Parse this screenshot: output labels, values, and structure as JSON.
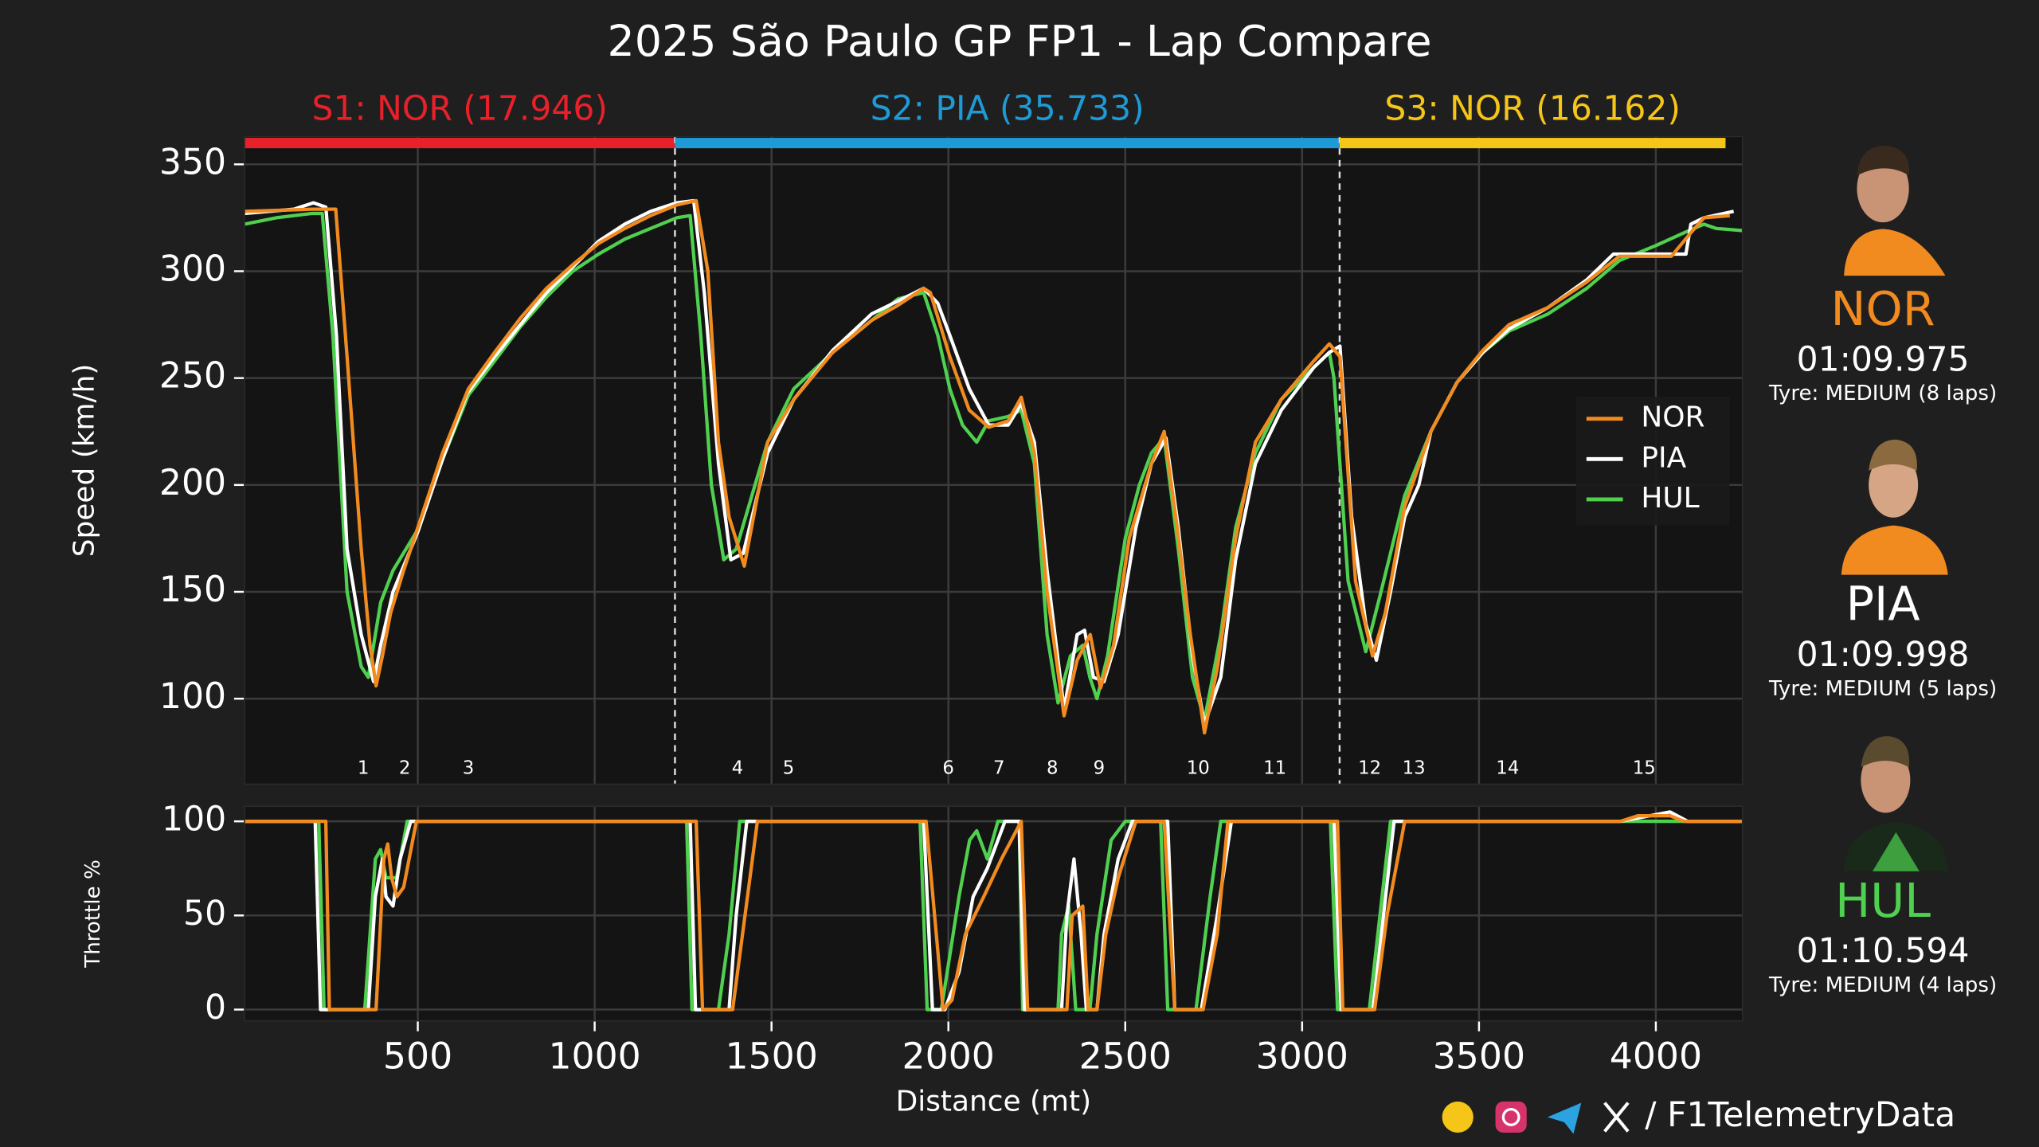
{
  "title": "2025 São Paulo GP FP1 - Lap Compare",
  "watermark": "@F1TelemetryData",
  "footer": "/ F1TelemetryData",
  "drivers": [
    {
      "code": "NOR",
      "color": "#f28b1f",
      "lap_time": "01:09.975",
      "tyre": "Tyre: MEDIUM (8 laps)"
    },
    {
      "code": "PIA",
      "color": "#ffffff",
      "lap_time": "01:09.998",
      "tyre": "Tyre: MEDIUM (5 laps)"
    },
    {
      "code": "HUL",
      "color": "#4fd14f",
      "lap_time": "01:10.594",
      "tyre": "Tyre: MEDIUM (4 laps)"
    }
  ],
  "chart_data": [
    {
      "type": "line",
      "ylabel": "Speed (km/h)",
      "xlim": [
        10,
        4245
      ],
      "ylim": [
        60,
        363
      ],
      "yticks": [
        100,
        150,
        200,
        250,
        300,
        350
      ],
      "grid": true,
      "legend": "center right",
      "sectors": [
        {
          "label": "S1: NOR (17.946)",
          "color": "#e8202a",
          "end": 1227
        },
        {
          "label": "S2: PIA (35.733)",
          "color": "#1e9ad6",
          "end": 3106
        },
        {
          "label": "S3: NOR (16.162)",
          "color": "#f5c518",
          "end": 4197
        }
      ],
      "annotations": [
        {
          "label": "1",
          "x": 346
        },
        {
          "label": "2",
          "x": 463
        },
        {
          "label": "3",
          "x": 643
        },
        {
          "label": "4",
          "x": 1404
        },
        {
          "label": "5",
          "x": 1548
        },
        {
          "label": "6",
          "x": 2000
        },
        {
          "label": "7",
          "x": 2143
        },
        {
          "label": "8",
          "x": 2294
        },
        {
          "label": "9",
          "x": 2426
        },
        {
          "label": "10",
          "x": 2706
        },
        {
          "label": "11",
          "x": 2923
        },
        {
          "label": "12",
          "x": 3191
        },
        {
          "label": "13",
          "x": 3316
        },
        {
          "label": "14",
          "x": 3581
        },
        {
          "label": "15",
          "x": 3967
        }
      ],
      "series": [
        {
          "name": "NOR",
          "color": "#f28b1f",
          "x": [
            10,
            200,
            268,
            300,
            340,
            365,
            382,
            400,
            423,
            460,
            496,
            570,
            643,
            717,
            790,
            864,
            938,
            1011,
            1085,
            1158,
            1232,
            1287,
            1320,
            1350,
            1380,
            1423,
            1489,
            1563,
            1673,
            1783,
            1857,
            1930,
            1949,
            2004,
            2059,
            2114,
            2169,
            2206,
            2243,
            2279,
            2327,
            2364,
            2401,
            2430,
            2467,
            2511,
            2574,
            2610,
            2647,
            2684,
            2724,
            2761,
            2812,
            2868,
            2941,
            3033,
            3077,
            3107,
            3151,
            3199,
            3235,
            3290,
            3364,
            3438,
            3511,
            3585,
            3695,
            3805,
            3897,
            4044,
            4099,
            4136,
            4209
          ],
          "values": [
            328,
            329,
            329,
            260,
            170,
            125,
            106,
            120,
            140,
            160,
            178,
            215,
            245,
            262,
            278,
            292,
            303,
            313,
            320,
            326,
            331,
            333,
            300,
            220,
            185,
            162,
            220,
            240,
            262,
            277,
            284,
            292,
            290,
            260,
            235,
            227,
            230,
            241,
            215,
            150,
            92,
            118,
            130,
            105,
            125,
            175,
            210,
            225,
            180,
            130,
            84,
            115,
            175,
            220,
            240,
            258,
            266,
            260,
            155,
            120,
            140,
            190,
            225,
            248,
            263,
            275,
            283,
            295,
            307,
            307,
            318,
            325,
            326
          ]
        },
        {
          "name": "PIA",
          "color": "#ffffff",
          "x": [
            10,
            150,
            205,
            240,
            270,
            300,
            340,
            375,
            395,
            430,
            500,
            570,
            640,
            717,
            790,
            864,
            938,
            1011,
            1085,
            1158,
            1232,
            1280,
            1310,
            1350,
            1385,
            1420,
            1489,
            1563,
            1673,
            1783,
            1857,
            1930,
            1970,
            2004,
            2059,
            2114,
            2169,
            2206,
            2243,
            2279,
            2327,
            2364,
            2385,
            2410,
            2440,
            2480,
            2530,
            2574,
            2615,
            2650,
            2690,
            2724,
            2770,
            2812,
            2868,
            2941,
            3033,
            3077,
            3107,
            3140,
            3180,
            3210,
            3250,
            3290,
            3330,
            3364,
            3438,
            3511,
            3585,
            3695,
            3805,
            3880,
            4000,
            4085,
            4099,
            4136,
            4220
          ],
          "values": [
            327,
            329,
            332,
            330,
            270,
            170,
            130,
            108,
            125,
            150,
            178,
            212,
            243,
            260,
            275,
            290,
            302,
            314,
            322,
            328,
            332,
            333,
            290,
            210,
            165,
            168,
            215,
            240,
            263,
            280,
            286,
            292,
            285,
            270,
            245,
            228,
            228,
            238,
            220,
            160,
            95,
            130,
            132,
            110,
            108,
            130,
            180,
            210,
            222,
            180,
            120,
            88,
            110,
            165,
            210,
            235,
            255,
            262,
            265,
            185,
            135,
            118,
            150,
            185,
            200,
            225,
            248,
            262,
            273,
            283,
            296,
            308,
            308,
            308,
            322,
            325,
            328
          ]
        },
        {
          "name": "HUL",
          "color": "#4fd14f",
          "x": [
            10,
            100,
            200,
            230,
            260,
            300,
            340,
            360,
            395,
            430,
            496,
            570,
            643,
            717,
            790,
            864,
            938,
            1011,
            1085,
            1158,
            1232,
            1270,
            1300,
            1330,
            1365,
            1400,
            1489,
            1563,
            1673,
            1783,
            1857,
            1930,
            1970,
            2004,
            2040,
            2080,
            2114,
            2169,
            2206,
            2243,
            2279,
            2310,
            2345,
            2380,
            2400,
            2420,
            2450,
            2500,
            2540,
            2574,
            2610,
            2650,
            2690,
            2724,
            2770,
            2812,
            2868,
            2941,
            3033,
            3077,
            3090,
            3130,
            3180,
            3220,
            3290,
            3364,
            3438,
            3511,
            3585,
            3695,
            3805,
            3897,
            4000,
            4080,
            4136,
            4170,
            4245
          ],
          "values": [
            322,
            325,
            327,
            327,
            270,
            150,
            115,
            110,
            145,
            160,
            178,
            212,
            242,
            258,
            274,
            288,
            300,
            308,
            315,
            320,
            325,
            326,
            270,
            200,
            165,
            170,
            220,
            245,
            262,
            277,
            287,
            290,
            270,
            245,
            228,
            220,
            230,
            232,
            235,
            210,
            130,
            98,
            120,
            125,
            110,
            100,
            120,
            175,
            200,
            215,
            222,
            170,
            110,
            90,
            130,
            180,
            215,
            240,
            255,
            262,
            250,
            155,
            122,
            148,
            195,
            225,
            248,
            262,
            272,
            280,
            292,
            305,
            312,
            318,
            322,
            320,
            319
          ]
        }
      ]
    },
    {
      "type": "line",
      "ylabel": "Throttle %",
      "xlabel": "Distance (mt)",
      "xlim": [
        10,
        4245
      ],
      "ylim": [
        -6,
        108
      ],
      "xticks": [
        500,
        1000,
        1500,
        2000,
        2500,
        3000,
        3500,
        4000
      ],
      "yticks": [
        0,
        50,
        100
      ],
      "grid": true,
      "series": [
        {
          "name": "NOR",
          "color": "#f28b1f",
          "x": [
            10,
            240,
            250,
            382,
            404,
            415,
            426,
            441,
            460,
            496,
            1287,
            1305,
            1390,
            1460,
            1937,
            1985,
            2010,
            2048,
            2100,
            2150,
            2206,
            2224,
            2335,
            2350,
            2380,
            2395,
            2420,
            2445,
            2480,
            2530,
            2610,
            2640,
            2720,
            2760,
            2790,
            3100,
            3115,
            3205,
            3240,
            3290,
            3900,
            3950,
            4040,
            4080,
            4245
          ],
          "values": [
            100,
            100,
            0,
            0,
            80,
            88,
            70,
            60,
            65,
            100,
            100,
            0,
            0,
            100,
            100,
            0,
            5,
            40,
            60,
            80,
            100,
            0,
            0,
            50,
            55,
            0,
            0,
            40,
            70,
            100,
            100,
            0,
            0,
            40,
            100,
            100,
            0,
            0,
            50,
            100,
            100,
            103,
            103,
            100,
            100
          ]
        },
        {
          "name": "PIA",
          "color": "#ffffff",
          "x": [
            10,
            210,
            225,
            360,
            380,
            400,
            410,
            430,
            450,
            480,
            1270,
            1285,
            1380,
            1400,
            1430,
            1930,
            1955,
            1990,
            2030,
            2070,
            2110,
            2140,
            2160,
            2200,
            2215,
            2320,
            2335,
            2355,
            2375,
            2390,
            2420,
            2440,
            2480,
            2520,
            2620,
            2640,
            2715,
            2760,
            2800,
            3090,
            3110,
            3200,
            3260,
            3900,
            4040,
            4090,
            4245
          ],
          "values": [
            100,
            100,
            0,
            0,
            60,
            80,
            60,
            55,
            80,
            100,
            100,
            0,
            0,
            50,
            100,
            100,
            0,
            0,
            20,
            60,
            75,
            90,
            100,
            100,
            0,
            0,
            50,
            80,
            40,
            0,
            0,
            40,
            80,
            100,
            100,
            0,
            0,
            50,
            100,
            100,
            0,
            0,
            100,
            100,
            105,
            100,
            100
          ]
        },
        {
          "name": "HUL",
          "color": "#4fd14f",
          "x": [
            10,
            220,
            235,
            350,
            380,
            395,
            410,
            440,
            470,
            1260,
            1275,
            1350,
            1380,
            1410,
            1920,
            1940,
            1980,
            2030,
            2060,
            2080,
            2110,
            2140,
            2200,
            2210,
            2310,
            2320,
            2340,
            2360,
            2400,
            2420,
            2460,
            2500,
            2600,
            2620,
            2700,
            2740,
            2770,
            3080,
            3100,
            3190,
            3250,
            4245
          ],
          "values": [
            100,
            100,
            0,
            0,
            80,
            85,
            70,
            70,
            100,
            100,
            0,
            0,
            40,
            100,
            100,
            0,
            0,
            60,
            90,
            95,
            80,
            100,
            100,
            0,
            0,
            40,
            55,
            0,
            0,
            40,
            90,
            100,
            100,
            0,
            0,
            60,
            100,
            100,
            0,
            0,
            100,
            100
          ]
        }
      ]
    }
  ]
}
